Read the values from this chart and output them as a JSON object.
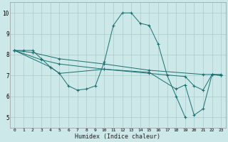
{
  "xlabel": "Humidex (Indice chaleur)",
  "bg_color": "#cce8e8",
  "grid_color": "#aacccc",
  "line_color": "#1a7070",
  "xlim": [
    -0.5,
    23.5
  ],
  "ylim": [
    4.5,
    10.5
  ],
  "xticks": [
    0,
    1,
    2,
    3,
    4,
    5,
    6,
    7,
    8,
    9,
    10,
    11,
    12,
    13,
    14,
    15,
    16,
    17,
    18,
    19,
    20,
    21,
    22,
    23
  ],
  "yticks": [
    5,
    6,
    7,
    8,
    9,
    10
  ],
  "line1_x": [
    0,
    1,
    2,
    3,
    4,
    5,
    6,
    7,
    8,
    9,
    10,
    11,
    12,
    13,
    14,
    15,
    16,
    17,
    18,
    19
  ],
  "line1_y": [
    8.2,
    8.2,
    8.2,
    7.8,
    7.4,
    7.1,
    6.5,
    6.3,
    6.35,
    6.5,
    7.65,
    9.4,
    10.0,
    10.0,
    9.5,
    9.4,
    8.5,
    7.0,
    6.0,
    5.0
  ],
  "line2_x": [
    0,
    2,
    5,
    10,
    15,
    21,
    22,
    23
  ],
  "line2_y": [
    8.2,
    8.1,
    7.8,
    7.55,
    7.25,
    7.05,
    7.05,
    7.05
  ],
  "line3_x": [
    0,
    3,
    5,
    10,
    15,
    19,
    20,
    21,
    22,
    23
  ],
  "line3_y": [
    8.2,
    7.75,
    7.55,
    7.3,
    7.1,
    6.95,
    6.5,
    6.3,
    7.05,
    7.0
  ],
  "line4_x": [
    0,
    4,
    5,
    10,
    15,
    18,
    19,
    20,
    21,
    22,
    23
  ],
  "line4_y": [
    8.2,
    7.4,
    7.1,
    7.3,
    7.15,
    6.35,
    6.55,
    5.1,
    5.4,
    7.05,
    7.0
  ]
}
